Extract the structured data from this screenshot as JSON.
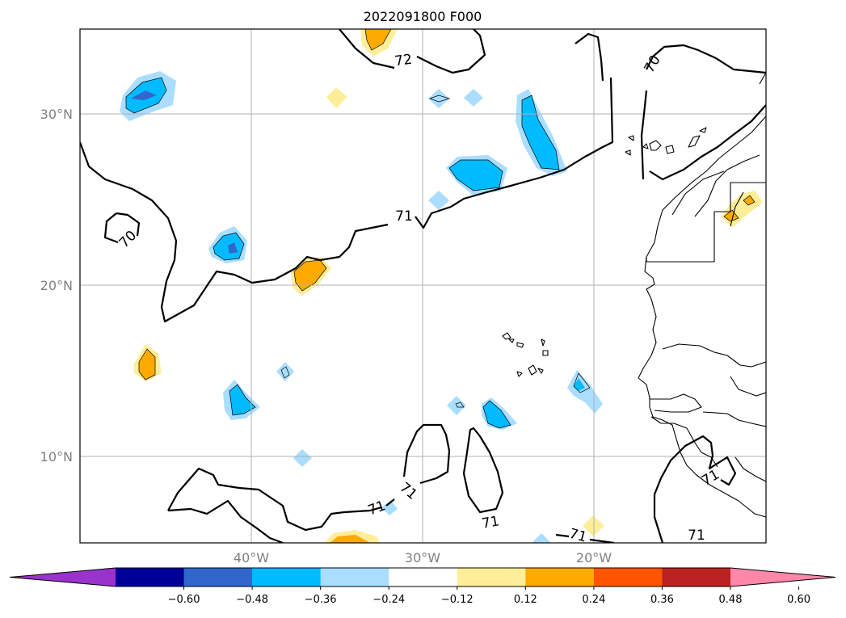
{
  "title": "2022091800 F000",
  "lat_labels": [
    "30°N",
    "20°N",
    "10°N"
  ],
  "lon_labels": [
    "40°W",
    "30°W",
    "20°W"
  ],
  "contour_labels": [
    "72",
    "70",
    "71",
    "70",
    "71",
    "71",
    "71",
    "71",
    "71",
    "71"
  ],
  "colorbar": {
    "ticks": [
      "−0.60",
      "−0.48",
      "−0.36",
      "−0.24",
      "−0.12",
      "0.12",
      "0.24",
      "0.36",
      "0.48",
      "0.60"
    ],
    "colors": [
      "#9933cc",
      "#000099",
      "#3366cc",
      "#00bbff",
      "#aaddff",
      "#ffffff",
      "#ffee99",
      "#ffaa00",
      "#ff5500",
      "#bb2222",
      "#ff88aa"
    ]
  }
}
